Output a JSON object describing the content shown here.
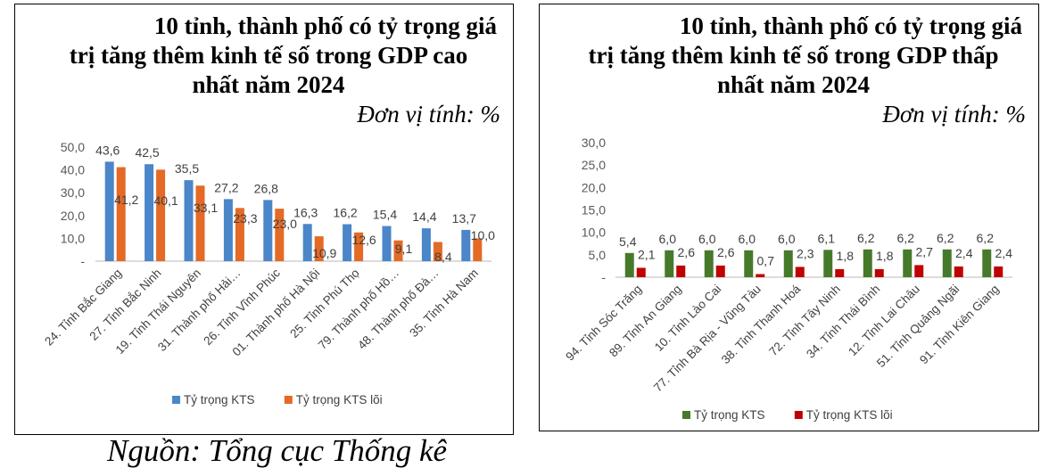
{
  "source": "Nguồn: Tổng cục Thống kê",
  "chart_data": [
    {
      "type": "bar",
      "title": "10 tỉnh, thành phố có tỷ trọng giá trị tăng thêm kinh tế số trong GDP cao nhất năm 2024",
      "title_lines": [
        "10 tỉnh, thành phố có tỷ trọng giá",
        "trị tăng thêm kinh tế số trong GDP cao",
        "nhất năm 2024"
      ],
      "unit": "Đơn vị tính: %",
      "xlabel": "",
      "ylabel": "",
      "ylim": [
        0,
        50
      ],
      "yticks": [
        "-",
        "10,0",
        "20,0",
        "30,0",
        "40,0",
        "50,0"
      ],
      "grid": false,
      "legend_position": "bottom",
      "categories": [
        "24. Tỉnh Bắc Giang",
        "27. Tỉnh Bắc Ninh",
        "19. Tỉnh Thái Nguyên",
        "31. Thành phố Hải…",
        "26. Tỉnh Vĩnh Phúc",
        "01. Thành phố Hà Nội",
        "25. Tỉnh Phú Thọ",
        "79. Thành phố Hồ…",
        "48. Thành phố Đà…",
        "35. Tỉnh Hà Nam"
      ],
      "series": [
        {
          "name": "Tỷ trọng KTS",
          "color": "#4a86c8",
          "values": [
            43.6,
            42.5,
            35.5,
            27.2,
            26.8,
            16.3,
            16.2,
            15.4,
            14.4,
            13.7
          ],
          "labels": [
            "43,6",
            "42,5",
            "35,5",
            "27,2",
            "26,8",
            "16,3",
            "16,2",
            "15,4",
            "14,4",
            "13,7"
          ]
        },
        {
          "name": "Tỷ trọng KTS lõi",
          "color": "#e46a25",
          "values": [
            41.2,
            40.1,
            33.1,
            23.3,
            23.0,
            10.9,
            12.6,
            9.1,
            8.4,
            10.0
          ],
          "labels": [
            "41,2",
            "40,1",
            "33,1",
            "23,3",
            "23,0",
            "10,9",
            "12,6",
            "9,1",
            "8,4",
            "10,0"
          ]
        }
      ]
    },
    {
      "type": "bar",
      "title": "10 tỉnh, thành phố có tỷ trọng giá trị tăng thêm kinh tế số trong GDP thấp nhất năm 2024",
      "title_lines": [
        "10 tỉnh, thành phố có tỷ trọng giá",
        "trị tăng thêm kinh tế số trong GDP thấp",
        "nhất năm 2024"
      ],
      "unit": "Đơn vị tính: %",
      "xlabel": "",
      "ylabel": "",
      "ylim": [
        0,
        30
      ],
      "yticks": [
        "-",
        "5,0",
        "10,0",
        "15,0",
        "20,0",
        "25,0",
        "30,0"
      ],
      "grid": false,
      "legend_position": "bottom",
      "categories": [
        "94. Tỉnh Sóc Trăng",
        "89. Tỉnh An Giang",
        "10. Tỉnh Lào Cai",
        "77. Tỉnh Bà Rịa - Vũng Tàu",
        "38. Tỉnh Thanh Hoá",
        "72. Tỉnh Tây Ninh",
        "34. Tỉnh Thái Bình",
        "12. Tỉnh Lai Châu",
        "51. Tỉnh Quảng Ngãi",
        "91. Tỉnh Kiên Giang"
      ],
      "series": [
        {
          "name": "Tỷ trọng KTS",
          "color": "#467a2a",
          "values": [
            5.4,
            6.0,
            6.0,
            6.0,
            6.0,
            6.1,
            6.2,
            6.2,
            6.2,
            6.2
          ],
          "labels": [
            "5,4",
            "6,0",
            "6,0",
            "6,0",
            "6,0",
            "6,1",
            "6,2",
            "6,2",
            "6,2",
            "6,2"
          ]
        },
        {
          "name": "Tỷ trọng KTS lõi",
          "color": "#c00000",
          "values": [
            2.1,
            2.6,
            2.6,
            0.7,
            2.3,
            1.8,
            1.8,
            2.7,
            2.4,
            2.4
          ],
          "labels": [
            "2,1",
            "2,6",
            "2,6",
            "0,7",
            "2,3",
            "1,8",
            "1,8",
            "2,7",
            "2,4",
            "2,4"
          ]
        }
      ]
    }
  ]
}
